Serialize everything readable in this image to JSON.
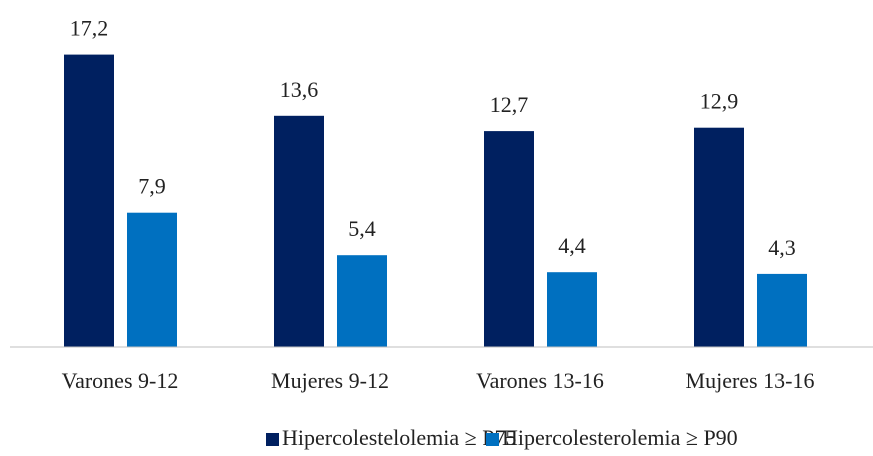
{
  "chart_data": {
    "type": "bar",
    "categories": [
      "Varones 9-12",
      "Mujeres 9-12",
      "Varones 13-16",
      "Mujeres 13-16"
    ],
    "series": [
      {
        "name": "Hipercolestelolemia ≥ P75",
        "color": "#002060",
        "values": [
          17.2,
          13.6,
          12.7,
          12.9
        ],
        "value_labels": [
          "17,2",
          "13,6",
          "12,7",
          "12,9"
        ]
      },
      {
        "name": "Hipercolesterolemia ≥ P90",
        "color": "#0070c0",
        "values": [
          7.9,
          5.4,
          4.4,
          4.3
        ],
        "value_labels": [
          "7,9",
          "5,4",
          "4,4",
          "4,3"
        ]
      }
    ],
    "ylim": [
      0,
      20
    ],
    "legend": "bottom"
  }
}
